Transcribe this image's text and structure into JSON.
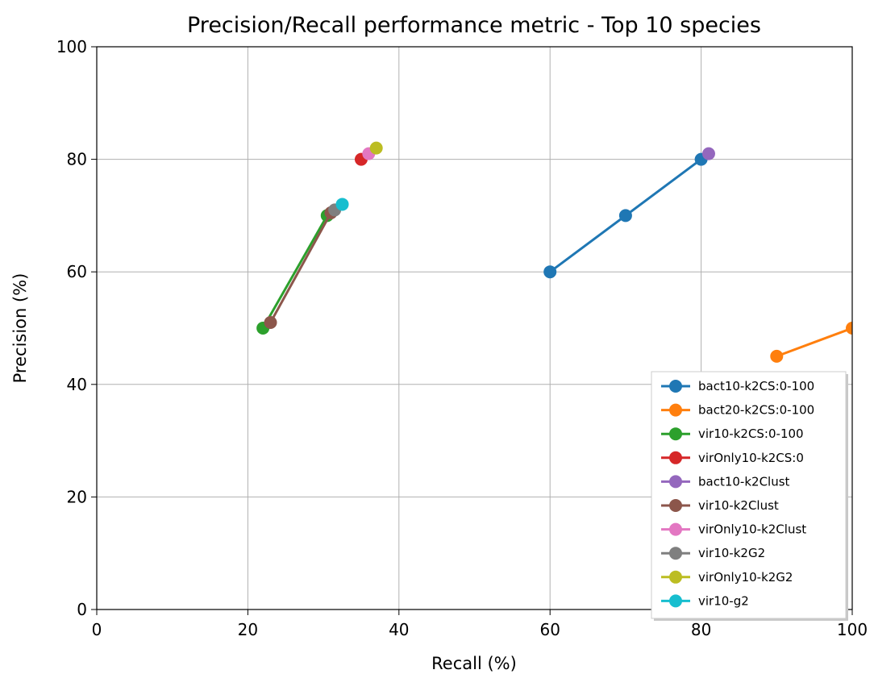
{
  "chart_data": {
    "type": "line",
    "title": "Precision/Recall performance metric - Top 10 species",
    "xlabel": "Recall (%)",
    "ylabel": "Precision (%)",
    "xlim": [
      0,
      100
    ],
    "ylim": [
      0,
      100
    ],
    "x_ticks": [
      "0",
      "20",
      "40",
      "60",
      "80",
      "100"
    ],
    "y_ticks": [
      "0",
      "20",
      "40",
      "60",
      "80",
      "100"
    ],
    "grid": true,
    "legend_position": "lower-right",
    "series": [
      {
        "name": "bact10-k2CS:0-100",
        "color": "#1f77b4",
        "points": [
          [
            60,
            60
          ],
          [
            70,
            70
          ],
          [
            80,
            80
          ]
        ]
      },
      {
        "name": "bact20-k2CS:0-100",
        "color": "#ff7f0e",
        "points": [
          [
            90,
            45
          ],
          [
            100,
            50
          ]
        ]
      },
      {
        "name": "vir10-k2CS:0-100",
        "color": "#2ca02c",
        "points": [
          [
            22,
            50
          ],
          [
            30.5,
            70
          ]
        ]
      },
      {
        "name": "virOnly10-k2CS:0",
        "color": "#d62728",
        "points": [
          [
            35,
            80
          ]
        ]
      },
      {
        "name": "bact10-k2Clust",
        "color": "#9467bd",
        "points": [
          [
            81,
            81
          ]
        ]
      },
      {
        "name": "vir10-k2Clust",
        "color": "#8c564b",
        "points": [
          [
            23,
            51
          ],
          [
            31,
            70.5
          ]
        ]
      },
      {
        "name": "virOnly10-k2Clust",
        "color": "#e377c2",
        "points": [
          [
            36,
            81
          ]
        ]
      },
      {
        "name": "vir10-k2G2",
        "color": "#7f7f7f",
        "points": [
          [
            31.5,
            71
          ]
        ]
      },
      {
        "name": "virOnly10-k2G2",
        "color": "#bcbd22",
        "points": [
          [
            37,
            82
          ]
        ]
      },
      {
        "name": "vir10-g2",
        "color": "#17becf",
        "points": [
          [
            32.5,
            72
          ]
        ]
      }
    ]
  }
}
